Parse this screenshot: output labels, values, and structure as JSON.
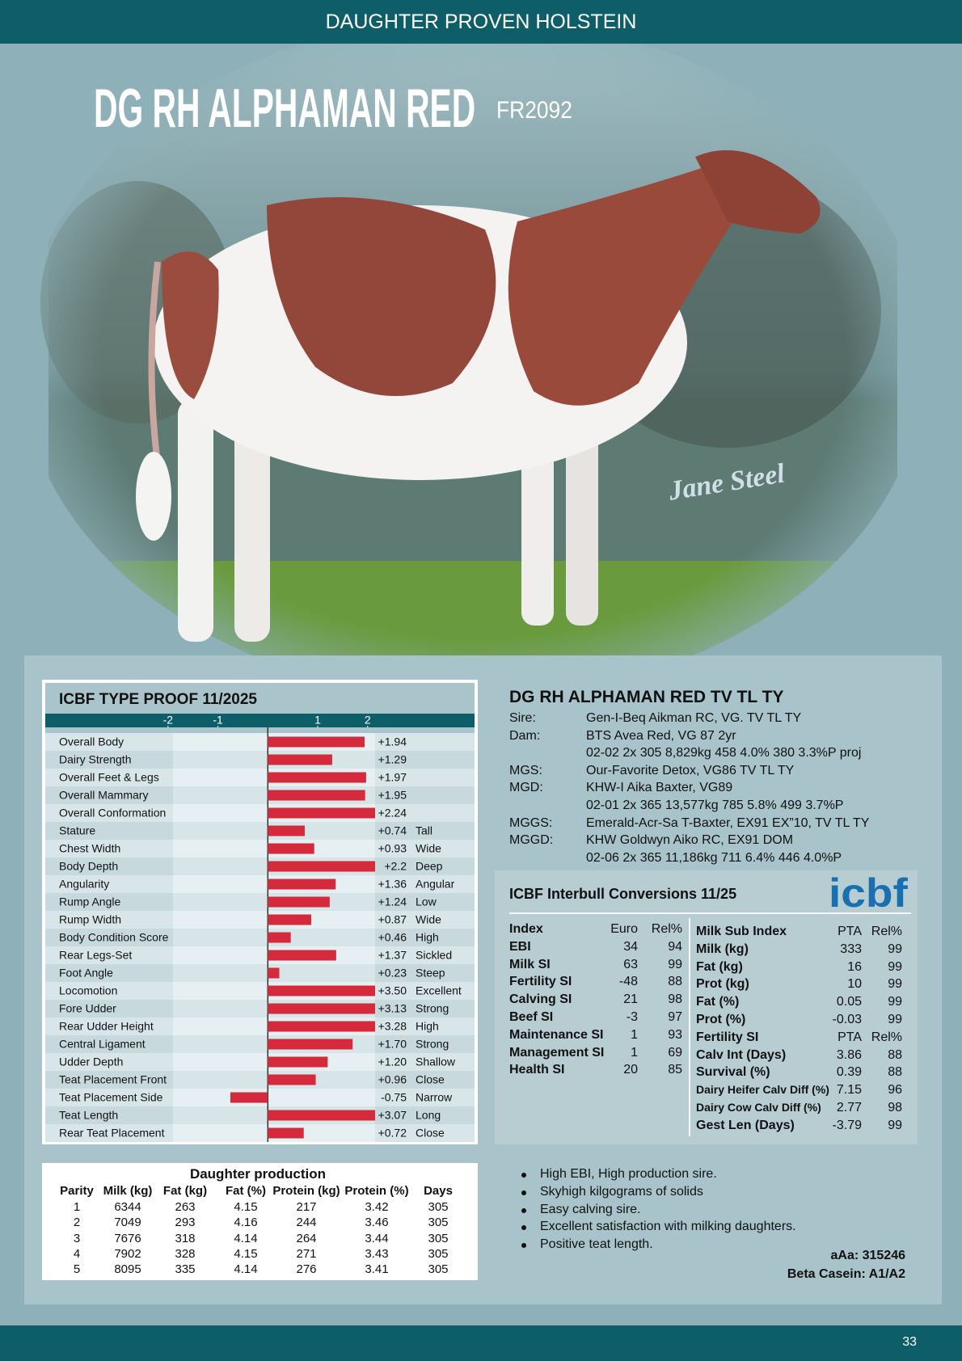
{
  "header": {
    "banner": "DAUGHTER PROVEN HOLSTEIN",
    "title": "DG RH ALPHAMAN RED",
    "code": "FR2092",
    "photo_credit": "Jane Steel",
    "page_number": "33"
  },
  "chart_data": {
    "type": "bar",
    "title": "ICBF TYPE PROOF 11/2025",
    "categories": [
      "Overall Body",
      "Dairy Strength",
      "Overall Feet & Legs",
      "Overall Mammary",
      "Overall Conformation",
      "Stature",
      "Chest Width",
      "Body Depth",
      "Angularity",
      "Rump Angle",
      "Rump Width",
      "Body Condition Score",
      "Rear Legs-Set",
      "Foot Angle",
      "Locomotion",
      "Fore Udder",
      "Rear Udder Height",
      "Central Ligament",
      "Udder Depth",
      "Teat Placement Front",
      "Teat Placement Side",
      "Teat Length",
      "Rear Teat Placement"
    ],
    "values": [
      1.94,
      1.29,
      1.97,
      1.95,
      2.24,
      0.74,
      0.93,
      2.2,
      1.36,
      1.24,
      0.87,
      0.46,
      1.37,
      0.23,
      3.5,
      3.13,
      3.28,
      1.7,
      1.2,
      0.96,
      -0.75,
      3.07,
      0.72
    ],
    "value_labels": [
      "+1.94",
      "+1.29",
      "+1.97",
      "+1.95",
      "+2.24",
      "+0.74",
      "+0.93",
      "+2.2",
      "+1.36",
      "+1.24",
      "+0.87",
      "+0.46",
      "+1.37",
      "+0.23",
      "+3.50",
      "+3.13",
      "+3.28",
      "+1.70",
      "+1.20",
      "+0.96",
      "-0.75",
      "+3.07",
      "+0.72"
    ],
    "descriptors": [
      null,
      null,
      null,
      null,
      null,
      "Tall",
      "Wide",
      "Deep",
      "Angular",
      "Low",
      "Wide",
      "High",
      "Sickled",
      "Steep",
      "Excellent",
      "Strong",
      "High",
      "Strong",
      "Shallow",
      "Close",
      "Narrow",
      "Long",
      "Close"
    ],
    "xlim": [
      -1.9,
      2.15
    ],
    "xticks": [
      -2,
      -1,
      1,
      2
    ],
    "color": "#d42a3c"
  },
  "pedigree": {
    "name": "DG RH ALPHAMAN RED TV TL TY",
    "rows": [
      {
        "label": "Sire:",
        "lines": [
          "Gen-I-Beq Aikman RC, VG. TV TL TY"
        ]
      },
      {
        "label": "Dam:",
        "lines": [
          "BTS Avea Red, VG 87 2yr",
          "02-02 2x  305  8,829kg  458  4.0%  380  3.3%P proj"
        ]
      },
      {
        "label": "MGS:",
        "lines": [
          "Our-Favorite Detox, VG86  TV TL TY"
        ]
      },
      {
        "label": "MGD:",
        "lines": [
          "KHW-I Aika Baxter, VG89",
          "02-01  2x  365  13,577kg  785  5.8%  499 3.7%P"
        ]
      },
      {
        "label": "MGGS:",
        "lines": [
          "Emerald-Acr-Sa T-Baxter, EX91 EX”10, TV TL TY"
        ]
      },
      {
        "label": "MGGD:",
        "lines": [
          "KHW Goldwyn Aiko RC, EX91 DOM",
          "02-06  2x  365  11,186kg  711  6.4%  446  4.0%P"
        ]
      }
    ]
  },
  "interbull": {
    "title": "ICBF Interbull Conversions 11/25",
    "logo": "icbf",
    "index": {
      "headers": [
        "Index",
        "Euro",
        "Rel%"
      ],
      "rows": [
        [
          "EBI",
          "34",
          "94"
        ],
        [
          "Milk SI",
          "63",
          "99"
        ],
        [
          "Fertility SI",
          "-48",
          "88"
        ],
        [
          "Calving SI",
          "21",
          "98"
        ],
        [
          "Beef SI",
          "-3",
          "97"
        ],
        [
          "Maintenance SI",
          "1",
          "93"
        ],
        [
          "Management SI",
          "1",
          "69"
        ],
        [
          "Health SI",
          "20",
          "85"
        ]
      ]
    },
    "milk": {
      "headers": [
        "Milk Sub Index",
        "PTA",
        "Rel%"
      ],
      "rows": [
        [
          "Milk (kg)",
          "333",
          "99"
        ],
        [
          "Fat (kg)",
          "16",
          "99"
        ],
        [
          "Prot (kg)",
          "10",
          "99"
        ],
        [
          "Fat (%)",
          "0.05",
          "99"
        ],
        [
          "Prot (%)",
          "-0.03",
          "99"
        ]
      ]
    },
    "fertility": {
      "headers": [
        "Fertility SI",
        "PTA",
        "Rel%"
      ],
      "rows": [
        [
          "Calv Int (Days)",
          "3.86",
          "88"
        ],
        [
          "Survival (%)",
          "0.39",
          "88"
        ],
        [
          "Dairy Heifer Calv Diff (%)",
          "7.15",
          "96"
        ],
        [
          "Dairy Cow Calv Diff (%)",
          "2.77",
          "98"
        ],
        [
          "Gest Len (Days)",
          "-3.79",
          "99"
        ]
      ]
    }
  },
  "production": {
    "title": "Daughter production",
    "headers": [
      "Parity",
      "Milk (kg)",
      "Fat (kg)",
      "Fat (%)",
      "Protein (kg)",
      "Protein (%)",
      "Days"
    ],
    "rows": [
      [
        "1",
        "6344",
        "263",
        "4.15",
        "217",
        "3.42",
        "305"
      ],
      [
        "2",
        "7049",
        "293",
        "4.16",
        "244",
        "3.46",
        "305"
      ],
      [
        "3",
        "7676",
        "318",
        "4.14",
        "264",
        "3.44",
        "305"
      ],
      [
        "4",
        "7902",
        "328",
        "4.15",
        "271",
        "3.43",
        "305"
      ],
      [
        "5",
        "8095",
        "335",
        "4.14",
        "276",
        "3.41",
        "305"
      ]
    ]
  },
  "notes": {
    "bullets": [
      "High EBI, High production sire.",
      "Skyhigh kilgograms of solids",
      "Easy calving sire.",
      "Excellent satisfaction with milking daughters.",
      "Positive teat length."
    ],
    "aaa": "aAa: 315246",
    "beta_casein": "Beta Casein: A1/A2"
  }
}
